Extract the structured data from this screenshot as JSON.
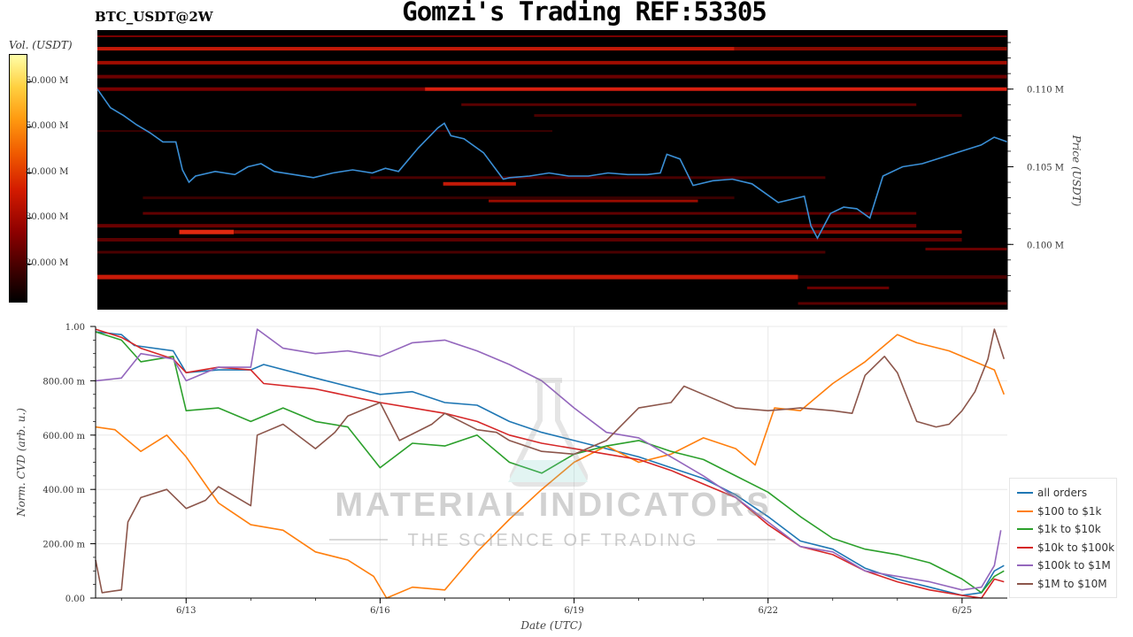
{
  "title": "Gomzi's Trading REF:53305",
  "pair": "BTC_USDT@2W",
  "colorbar": {
    "label": "Vol. (USDT)",
    "ticks": [
      "50.000 M",
      "50.000 M",
      "40.000 M",
      "30.000 M",
      "20.000 M"
    ]
  },
  "watermark": {
    "line1": "MATERIAL INDICATORS",
    "line2": "THE SCIENCE OF TRADING"
  },
  "colors": {
    "all_orders": "#1f77b4",
    "o100_1k": "#ff7f0e",
    "o1k_10k": "#2ca02c",
    "o10k_100k": "#d62728",
    "o100k_1m": "#9467bd",
    "o1m_10m": "#8c564b",
    "price_line": "#3a8fd6"
  },
  "chart_data": [
    {
      "type": "heatmap",
      "ylabel": "Price (USDT)",
      "yticks": [
        "0.100 M",
        "0.105 M",
        "0.110 M"
      ],
      "ytick_values": [
        0.1,
        0.105,
        0.11
      ],
      "ylim": [
        0.0958,
        0.1138
      ],
      "x_days": [
        11.7,
        25.6
      ],
      "price_series": [
        [
          11.7,
          0.11
        ],
        [
          11.9,
          0.1088
        ],
        [
          12.1,
          0.1083
        ],
        [
          12.3,
          0.1077
        ],
        [
          12.5,
          0.1072
        ],
        [
          12.7,
          0.1066
        ],
        [
          12.9,
          0.1066
        ],
        [
          13.0,
          0.1048
        ],
        [
          13.1,
          0.104
        ],
        [
          13.2,
          0.1044
        ],
        [
          13.5,
          0.1047
        ],
        [
          13.8,
          0.1045
        ],
        [
          14.0,
          0.105
        ],
        [
          14.2,
          0.1052
        ],
        [
          14.4,
          0.1047
        ],
        [
          14.7,
          0.1045
        ],
        [
          15.0,
          0.1043
        ],
        [
          15.3,
          0.1046
        ],
        [
          15.6,
          0.1048
        ],
        [
          15.9,
          0.1046
        ],
        [
          16.1,
          0.1049
        ],
        [
          16.3,
          0.1047
        ],
        [
          16.6,
          0.1062
        ],
        [
          16.9,
          0.1075
        ],
        [
          17.0,
          0.1078
        ],
        [
          17.1,
          0.107
        ],
        [
          17.3,
          0.1068
        ],
        [
          17.6,
          0.1059
        ],
        [
          17.9,
          0.1042
        ],
        [
          18.0,
          0.1043
        ],
        [
          18.3,
          0.1044
        ],
        [
          18.6,
          0.1046
        ],
        [
          18.9,
          0.1044
        ],
        [
          19.2,
          0.1044
        ],
        [
          19.5,
          0.1046
        ],
        [
          19.8,
          0.1045
        ],
        [
          20.1,
          0.1045
        ],
        [
          20.3,
          0.1046
        ],
        [
          20.4,
          0.1058
        ],
        [
          20.6,
          0.1055
        ],
        [
          20.8,
          0.1038
        ],
        [
          21.1,
          0.1041
        ],
        [
          21.4,
          0.1042
        ],
        [
          21.7,
          0.1039
        ],
        [
          21.9,
          0.1033
        ],
        [
          22.1,
          0.1027
        ],
        [
          22.3,
          0.1029
        ],
        [
          22.5,
          0.1031
        ],
        [
          22.6,
          0.1012
        ],
        [
          22.7,
          0.1004
        ],
        [
          22.9,
          0.102
        ],
        [
          23.1,
          0.1024
        ],
        [
          23.3,
          0.1023
        ],
        [
          23.5,
          0.1017
        ],
        [
          23.7,
          0.1044
        ],
        [
          24.0,
          0.105
        ],
        [
          24.3,
          0.1052
        ],
        [
          24.6,
          0.1056
        ],
        [
          24.9,
          0.106
        ],
        [
          25.2,
          0.1064
        ],
        [
          25.4,
          0.1069
        ],
        [
          25.6,
          0.1066
        ]
      ]
    },
    {
      "type": "line",
      "xlabel": "Date (UTC)",
      "ylabel": "Norm. CVD (arb. u.)",
      "xticks": [
        "6/13",
        "6/16",
        "6/19",
        "6/22",
        "6/25"
      ],
      "xtick_values": [
        13,
        16,
        19,
        22,
        25
      ],
      "yticks": [
        "0.00",
        "200.00 m",
        "400.00 m",
        "600.00 m",
        "800.00 m",
        "1.00"
      ],
      "ytick_values": [
        0,
        0.2,
        0.4,
        0.6,
        0.8,
        1.0
      ],
      "xlim": [
        11.6,
        25.7
      ],
      "ylim": [
        0,
        1.0
      ],
      "series": [
        {
          "name": "all orders",
          "color_key": "all_orders",
          "points": [
            [
              11.6,
              0.98
            ],
            [
              12.0,
              0.97
            ],
            [
              12.2,
              0.93
            ],
            [
              12.8,
              0.91
            ],
            [
              13.0,
              0.83
            ],
            [
              13.5,
              0.84
            ],
            [
              14.0,
              0.84
            ],
            [
              14.2,
              0.86
            ],
            [
              15.0,
              0.81
            ],
            [
              16.0,
              0.75
            ],
            [
              16.5,
              0.76
            ],
            [
              17.0,
              0.72
            ],
            [
              17.5,
              0.71
            ],
            [
              18.0,
              0.65
            ],
            [
              18.5,
              0.61
            ],
            [
              19.0,
              0.58
            ],
            [
              19.5,
              0.55
            ],
            [
              20.0,
              0.52
            ],
            [
              20.5,
              0.48
            ],
            [
              21.0,
              0.44
            ],
            [
              21.5,
              0.38
            ],
            [
              22.0,
              0.3
            ],
            [
              22.5,
              0.21
            ],
            [
              23.0,
              0.18
            ],
            [
              23.5,
              0.11
            ],
            [
              24.0,
              0.07
            ],
            [
              24.5,
              0.04
            ],
            [
              25.0,
              0.01
            ],
            [
              25.3,
              0.02
            ],
            [
              25.5,
              0.1
            ],
            [
              25.65,
              0.12
            ]
          ]
        },
        {
          "name": "$100 to $1k",
          "color_key": "o100_1k",
          "points": [
            [
              11.6,
              0.63
            ],
            [
              11.9,
              0.62
            ],
            [
              12.3,
              0.54
            ],
            [
              12.7,
              0.6
            ],
            [
              13.0,
              0.52
            ],
            [
              13.5,
              0.35
            ],
            [
              14.0,
              0.27
            ],
            [
              14.5,
              0.25
            ],
            [
              15.0,
              0.17
            ],
            [
              15.5,
              0.14
            ],
            [
              15.9,
              0.08
            ],
            [
              16.1,
              0.0
            ],
            [
              16.5,
              0.04
            ],
            [
              17.0,
              0.03
            ],
            [
              17.5,
              0.17
            ],
            [
              18.0,
              0.29
            ],
            [
              18.5,
              0.4
            ],
            [
              19.0,
              0.5
            ],
            [
              19.5,
              0.56
            ],
            [
              20.0,
              0.5
            ],
            [
              20.5,
              0.53
            ],
            [
              21.0,
              0.59
            ],
            [
              21.5,
              0.55
            ],
            [
              21.8,
              0.49
            ],
            [
              22.1,
              0.7
            ],
            [
              22.5,
              0.69
            ],
            [
              23.0,
              0.79
            ],
            [
              23.5,
              0.87
            ],
            [
              24.0,
              0.97
            ],
            [
              24.3,
              0.94
            ],
            [
              24.8,
              0.91
            ],
            [
              25.2,
              0.87
            ],
            [
              25.5,
              0.84
            ],
            [
              25.65,
              0.75
            ]
          ]
        },
        {
          "name": "$1k to $10k",
          "color_key": "o1k_10k",
          "points": [
            [
              11.6,
              0.98
            ],
            [
              12.0,
              0.95
            ],
            [
              12.3,
              0.87
            ],
            [
              12.8,
              0.89
            ],
            [
              13.0,
              0.69
            ],
            [
              13.5,
              0.7
            ],
            [
              14.0,
              0.65
            ],
            [
              14.5,
              0.7
            ],
            [
              15.0,
              0.65
            ],
            [
              15.5,
              0.63
            ],
            [
              16.0,
              0.48
            ],
            [
              16.5,
              0.57
            ],
            [
              17.0,
              0.56
            ],
            [
              17.5,
              0.6
            ],
            [
              18.0,
              0.5
            ],
            [
              18.5,
              0.46
            ],
            [
              19.0,
              0.53
            ],
            [
              19.5,
              0.56
            ],
            [
              20.0,
              0.58
            ],
            [
              20.5,
              0.54
            ],
            [
              21.0,
              0.51
            ],
            [
              21.5,
              0.45
            ],
            [
              22.0,
              0.39
            ],
            [
              22.5,
              0.3
            ],
            [
              23.0,
              0.22
            ],
            [
              23.5,
              0.18
            ],
            [
              24.0,
              0.16
            ],
            [
              24.5,
              0.13
            ],
            [
              25.0,
              0.07
            ],
            [
              25.3,
              0.02
            ],
            [
              25.5,
              0.08
            ],
            [
              25.65,
              0.1
            ]
          ]
        },
        {
          "name": "$10k to $100k",
          "color_key": "o10k_100k",
          "points": [
            [
              11.6,
              0.99
            ],
            [
              12.0,
              0.96
            ],
            [
              12.3,
              0.92
            ],
            [
              12.8,
              0.88
            ],
            [
              13.0,
              0.83
            ],
            [
              13.5,
              0.85
            ],
            [
              14.0,
              0.84
            ],
            [
              14.2,
              0.79
            ],
            [
              15.0,
              0.77
            ],
            [
              16.0,
              0.72
            ],
            [
              16.5,
              0.7
            ],
            [
              17.0,
              0.68
            ],
            [
              17.5,
              0.65
            ],
            [
              18.0,
              0.6
            ],
            [
              18.5,
              0.57
            ],
            [
              19.0,
              0.55
            ],
            [
              19.5,
              0.53
            ],
            [
              20.0,
              0.51
            ],
            [
              20.5,
              0.47
            ],
            [
              21.0,
              0.42
            ],
            [
              21.5,
              0.37
            ],
            [
              22.0,
              0.27
            ],
            [
              22.5,
              0.19
            ],
            [
              23.0,
              0.16
            ],
            [
              23.5,
              0.1
            ],
            [
              24.0,
              0.06
            ],
            [
              24.5,
              0.03
            ],
            [
              25.0,
              0.01
            ],
            [
              25.3,
              0.0
            ],
            [
              25.5,
              0.07
            ],
            [
              25.65,
              0.06
            ]
          ]
        },
        {
          "name": "$100k to $1M",
          "color_key": "o100k_1m",
          "points": [
            [
              11.6,
              0.8
            ],
            [
              12.0,
              0.81
            ],
            [
              12.3,
              0.9
            ],
            [
              12.8,
              0.88
            ],
            [
              13.0,
              0.8
            ],
            [
              13.5,
              0.85
            ],
            [
              14.0,
              0.85
            ],
            [
              14.1,
              0.99
            ],
            [
              14.5,
              0.92
            ],
            [
              15.0,
              0.9
            ],
            [
              15.5,
              0.91
            ],
            [
              16.0,
              0.89
            ],
            [
              16.5,
              0.94
            ],
            [
              17.0,
              0.95
            ],
            [
              17.5,
              0.91
            ],
            [
              18.0,
              0.86
            ],
            [
              18.5,
              0.8
            ],
            [
              19.0,
              0.7
            ],
            [
              19.5,
              0.61
            ],
            [
              20.0,
              0.59
            ],
            [
              20.5,
              0.52
            ],
            [
              21.0,
              0.45
            ],
            [
              21.5,
              0.37
            ],
            [
              22.0,
              0.28
            ],
            [
              22.5,
              0.19
            ],
            [
              23.0,
              0.17
            ],
            [
              23.5,
              0.1
            ],
            [
              24.0,
              0.08
            ],
            [
              24.5,
              0.06
            ],
            [
              25.0,
              0.03
            ],
            [
              25.3,
              0.04
            ],
            [
              25.5,
              0.12
            ],
            [
              25.6,
              0.25
            ]
          ]
        },
        {
          "name": "$1M to $10M",
          "color_key": "o1m_10m",
          "points": [
            [
              11.6,
              0.14
            ],
            [
              11.7,
              0.02
            ],
            [
              12.0,
              0.03
            ],
            [
              12.1,
              0.28
            ],
            [
              12.3,
              0.37
            ],
            [
              12.7,
              0.4
            ],
            [
              13.0,
              0.33
            ],
            [
              13.3,
              0.36
            ],
            [
              13.5,
              0.41
            ],
            [
              14.0,
              0.34
            ],
            [
              14.1,
              0.6
            ],
            [
              14.5,
              0.64
            ],
            [
              15.0,
              0.55
            ],
            [
              15.3,
              0.61
            ],
            [
              15.5,
              0.67
            ],
            [
              16.0,
              0.72
            ],
            [
              16.3,
              0.58
            ],
            [
              16.8,
              0.64
            ],
            [
              17.0,
              0.68
            ],
            [
              17.5,
              0.62
            ],
            [
              17.8,
              0.61
            ],
            [
              18.0,
              0.58
            ],
            [
              18.5,
              0.54
            ],
            [
              19.0,
              0.53
            ],
            [
              19.5,
              0.58
            ],
            [
              20.0,
              0.7
            ],
            [
              20.5,
              0.72
            ],
            [
              20.7,
              0.78
            ],
            [
              21.0,
              0.75
            ],
            [
              21.5,
              0.7
            ],
            [
              22.0,
              0.69
            ],
            [
              22.5,
              0.7
            ],
            [
              23.0,
              0.69
            ],
            [
              23.3,
              0.68
            ],
            [
              23.5,
              0.82
            ],
            [
              23.8,
              0.89
            ],
            [
              24.0,
              0.83
            ],
            [
              24.3,
              0.65
            ],
            [
              24.6,
              0.63
            ],
            [
              24.8,
              0.64
            ],
            [
              25.0,
              0.69
            ],
            [
              25.2,
              0.76
            ],
            [
              25.4,
              0.88
            ],
            [
              25.5,
              0.99
            ],
            [
              25.65,
              0.88
            ]
          ]
        }
      ]
    }
  ]
}
